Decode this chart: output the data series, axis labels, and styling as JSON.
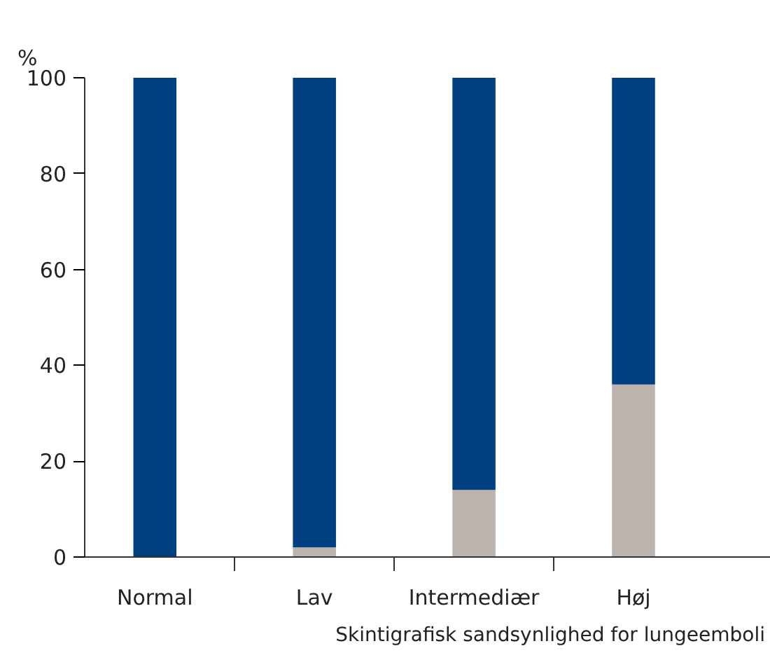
{
  "chart_data": {
    "type": "bar",
    "stacked": true,
    "categories": [
      "Normal",
      "Lav",
      "Intermediær",
      "Høj"
    ],
    "series": [
      {
        "color": "#bab3ae",
        "values": [
          0,
          2,
          14,
          36
        ]
      },
      {
        "color": "#003f80",
        "values": [
          100,
          98,
          86,
          64
        ]
      }
    ],
    "ylim": [
      0,
      100
    ],
    "yticks": [
      0,
      20,
      40,
      60,
      80,
      100
    ],
    "ylabel": "%",
    "xlabel": "Skintigrafisk sandsynlighed for lungeemboli",
    "grid": false
  }
}
